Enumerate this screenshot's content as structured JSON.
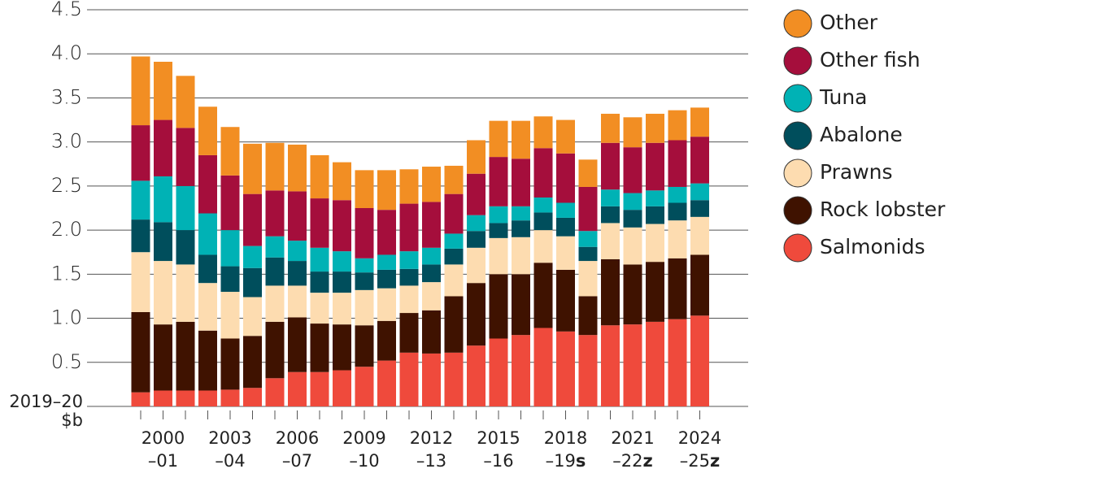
{
  "chart_data": {
    "type": "stacked-bar",
    "ylabel": [
      "2019–20",
      "$b"
    ],
    "ylim": [
      0,
      4.5
    ],
    "yticks": [
      0.5,
      {
        "value": 1,
        "label": "1.0"
      },
      1.5,
      {
        "value": 2,
        "label": "2.0"
      },
      2.5,
      {
        "value": 3,
        "label": "3.0"
      },
      3.5,
      {
        "value": 4,
        "label": "4.0"
      },
      4.5
    ],
    "grid": true,
    "legend": "right",
    "categories": [
      null,
      [
        "2000",
        "–01"
      ],
      null,
      null,
      [
        "2003",
        "–04"
      ],
      null,
      null,
      [
        "2006",
        "–07"
      ],
      null,
      null,
      [
        "2009",
        "–10"
      ],
      null,
      null,
      [
        "2012",
        "–13"
      ],
      null,
      null,
      [
        "2015",
        "–16"
      ],
      null,
      null,
      [
        "2018",
        "–19",
        "s"
      ],
      null,
      null,
      [
        "2021",
        "–22",
        "z"
      ],
      null,
      null,
      [
        "2024",
        "–25",
        "z"
      ]
    ],
    "series": [
      {
        "name": "Other",
        "color": "#f28e23",
        "values": [
          0.78,
          0.66,
          0.59,
          0.55,
          0.55,
          0.57,
          0.54,
          0.53,
          0.49,
          0.43,
          0.43,
          0.45,
          0.39,
          0.4,
          0.32,
          0.38,
          0.41,
          0.43,
          0.36,
          0.38,
          0.31,
          0.33,
          0.34,
          0.33,
          0.34,
          0.33
        ]
      },
      {
        "name": "Other fish",
        "color": "#a50e3c",
        "values": [
          0.63,
          0.64,
          0.66,
          0.66,
          0.62,
          0.59,
          0.52,
          0.56,
          0.56,
          0.58,
          0.57,
          0.51,
          0.54,
          0.52,
          0.45,
          0.47,
          0.56,
          0.54,
          0.56,
          0.56,
          0.5,
          0.53,
          0.52,
          0.54,
          0.53,
          0.53
        ]
      },
      {
        "name": "Tuna",
        "color": "#00b2b5",
        "values": [
          0.44,
          0.52,
          0.5,
          0.47,
          0.41,
          0.25,
          0.24,
          0.23,
          0.27,
          0.23,
          0.16,
          0.17,
          0.2,
          0.19,
          0.17,
          0.18,
          0.19,
          0.16,
          0.17,
          0.17,
          0.18,
          0.19,
          0.19,
          0.18,
          0.18,
          0.19
        ]
      },
      {
        "name": "Abalone",
        "color": "#004e5c",
        "values": [
          0.37,
          0.44,
          0.39,
          0.32,
          0.29,
          0.33,
          0.32,
          0.28,
          0.24,
          0.24,
          0.2,
          0.21,
          0.19,
          0.2,
          0.18,
          0.19,
          0.17,
          0.19,
          0.2,
          0.21,
          0.16,
          0.19,
          0.2,
          0.2,
          0.2,
          0.19
        ]
      },
      {
        "name": "Prawns",
        "color": "#fddcb0",
        "values": [
          0.68,
          0.72,
          0.65,
          0.54,
          0.53,
          0.44,
          0.41,
          0.36,
          0.35,
          0.36,
          0.4,
          0.37,
          0.31,
          0.32,
          0.36,
          0.4,
          0.41,
          0.42,
          0.37,
          0.38,
          0.4,
          0.41,
          0.42,
          0.43,
          0.43,
          0.43
        ]
      },
      {
        "name": "Rock lobster",
        "color": "#3f1200",
        "values": [
          0.91,
          0.75,
          0.78,
          0.68,
          0.58,
          0.59,
          0.64,
          0.62,
          0.55,
          0.52,
          0.47,
          0.45,
          0.45,
          0.49,
          0.64,
          0.71,
          0.73,
          0.69,
          0.74,
          0.7,
          0.44,
          0.75,
          0.68,
          0.68,
          0.69,
          0.69
        ]
      },
      {
        "name": "Salmonids",
        "color": "#ef4a3c",
        "values": [
          0.16,
          0.18,
          0.18,
          0.18,
          0.19,
          0.21,
          0.32,
          0.39,
          0.39,
          0.41,
          0.45,
          0.52,
          0.61,
          0.6,
          0.61,
          0.69,
          0.77,
          0.81,
          0.89,
          0.85,
          0.81,
          0.92,
          0.93,
          0.96,
          0.99,
          1.03
        ]
      }
    ]
  }
}
